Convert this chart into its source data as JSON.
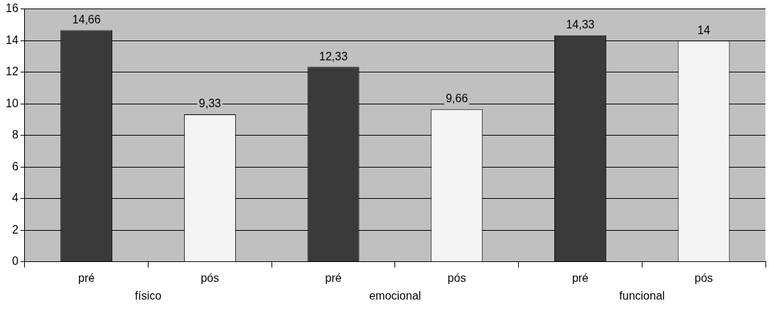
{
  "chart_data": {
    "type": "bar",
    "categories": [
      "pré",
      "pós",
      "pré",
      "pós",
      "pré",
      "pós"
    ],
    "values": [
      14.66,
      9.33,
      12.33,
      9.66,
      14.33,
      14
    ],
    "colors": [
      "#3a3a3a",
      "#f4f4f4",
      "#3a3a3a",
      "#f4f4f4",
      "#3a3a3a",
      "#f4f4f4"
    ],
    "value_labels": [
      "14,66",
      "9,33",
      "12,33",
      "9,66",
      "14,33",
      "14"
    ],
    "annotations": [
      "físico",
      "emocional",
      "funcional"
    ],
    "ylim": [
      0,
      16
    ],
    "yticks": [
      0,
      2,
      4,
      6,
      8,
      10,
      12,
      14,
      16
    ],
    "grid": "y",
    "legend": false
  }
}
